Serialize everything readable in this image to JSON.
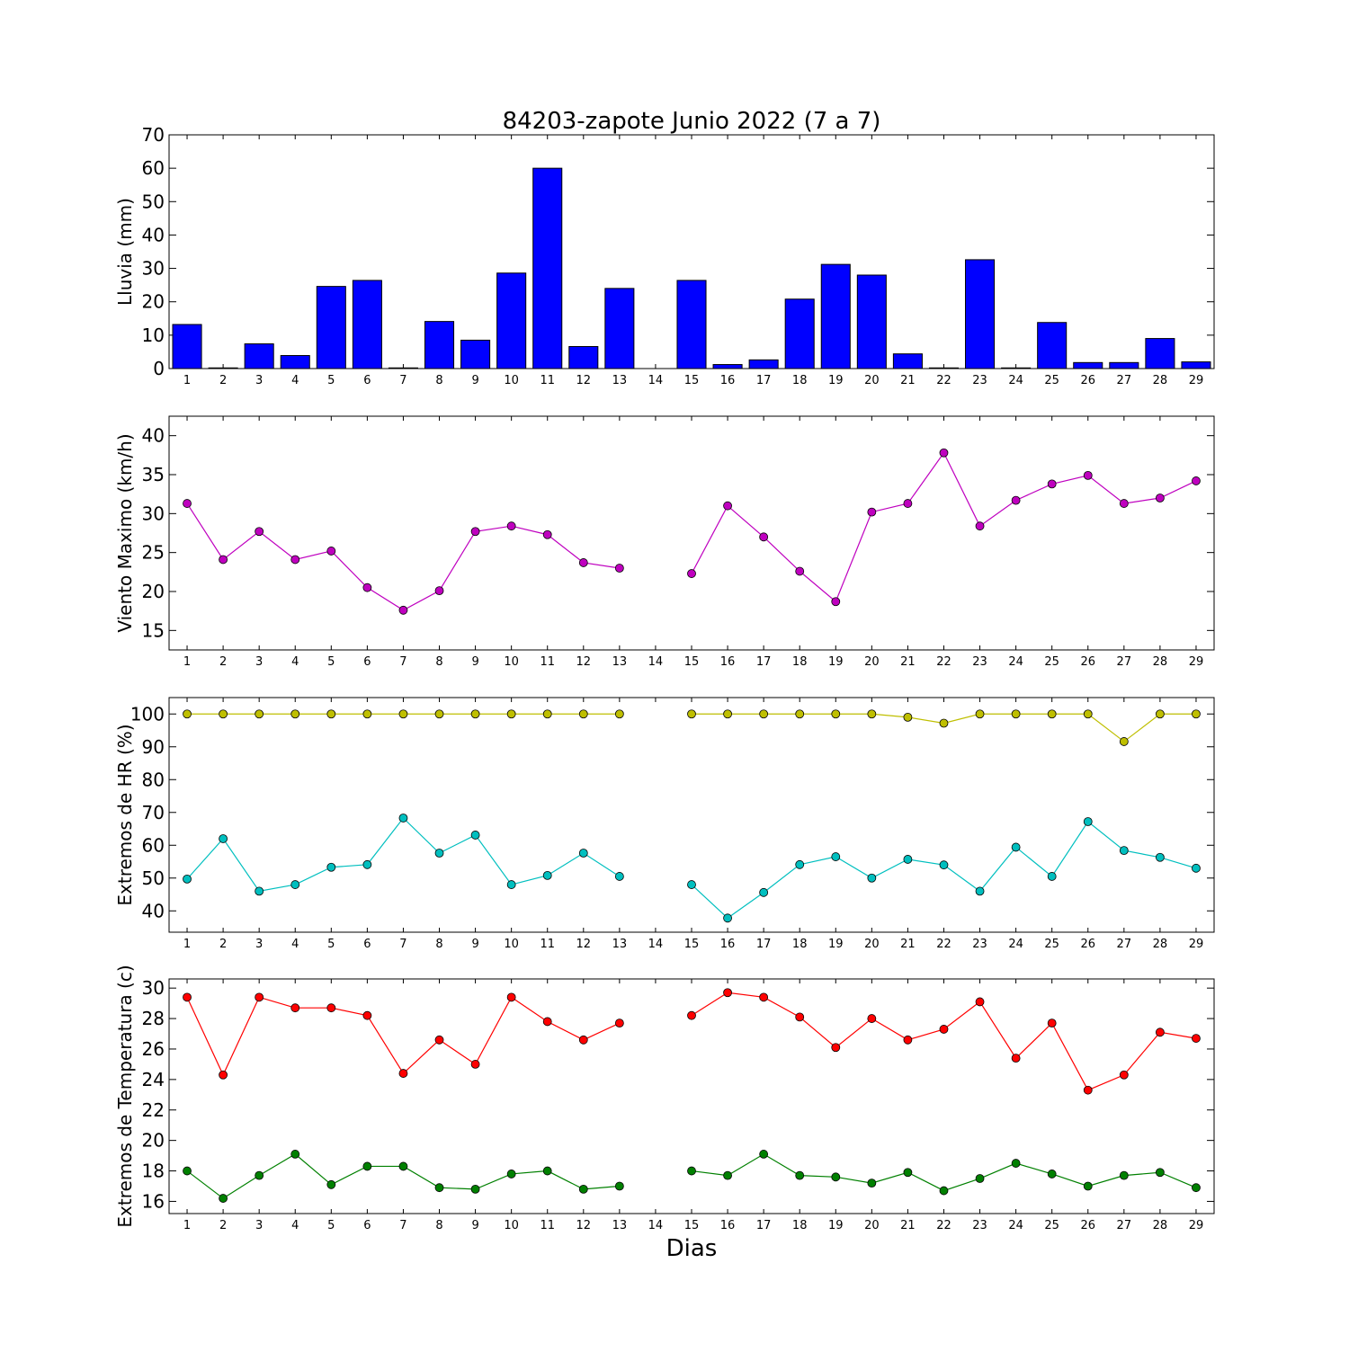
{
  "title": "84203-zapote Junio 2022  (7 a 7)",
  "xlabel": "Dias",
  "days": [
    1,
    2,
    3,
    4,
    5,
    6,
    7,
    8,
    9,
    10,
    11,
    12,
    13,
    14,
    15,
    16,
    17,
    18,
    19,
    20,
    21,
    22,
    23,
    24,
    25,
    26,
    27,
    28,
    29
  ],
  "chart_data": [
    {
      "type": "bar",
      "title": "84203-zapote Junio 2022  (7 a 7)",
      "xlabel": "",
      "ylabel": "Lluvia (mm)",
      "ylim": [
        0,
        70
      ],
      "yticks": [
        0,
        10,
        20,
        30,
        40,
        50,
        60,
        70
      ],
      "color": "#0000ff",
      "x": [
        1,
        2,
        3,
        4,
        5,
        6,
        7,
        8,
        9,
        10,
        11,
        12,
        13,
        14,
        15,
        16,
        17,
        18,
        19,
        20,
        21,
        22,
        23,
        24,
        25,
        26,
        27,
        28,
        29
      ],
      "values": [
        13.2,
        0.2,
        7.4,
        3.9,
        24.6,
        26.4,
        0.2,
        14.1,
        8.5,
        28.6,
        60,
        6.6,
        24,
        0,
        26.4,
        1.2,
        2.6,
        20.8,
        31.2,
        28,
        4.4,
        0.2,
        32.6,
        0.2,
        13.8,
        1.8,
        1.8,
        9,
        2
      ],
      "grid": false
    },
    {
      "type": "line",
      "ylabel": "Viento Maximo (km/h)",
      "ylim": [
        12.5,
        42.5
      ],
      "yticks": [
        15,
        20,
        25,
        30,
        35,
        40
      ],
      "grid": false,
      "x": [
        1,
        2,
        3,
        4,
        5,
        6,
        7,
        8,
        9,
        10,
        11,
        12,
        13,
        14,
        15,
        16,
        17,
        18,
        19,
        20,
        21,
        22,
        23,
        24,
        25,
        26,
        27,
        28,
        29
      ],
      "series": [
        {
          "color": "#bf00bf",
          "values": [
            31.3,
            24.1,
            27.7,
            24.1,
            25.2,
            20.5,
            17.6,
            20.1,
            27.7,
            28.4,
            27.3,
            23.7,
            23.0,
            null,
            22.3,
            31.0,
            27.0,
            22.6,
            18.7,
            30.2,
            31.3,
            37.8,
            28.4,
            31.7,
            33.8,
            34.9,
            31.3,
            32.0,
            34.2
          ]
        }
      ]
    },
    {
      "type": "line",
      "ylabel": "Extremos de HR (%)",
      "ylim": [
        33.5,
        105
      ],
      "yticks": [
        40,
        50,
        60,
        70,
        80,
        90,
        100
      ],
      "grid": false,
      "x": [
        1,
        2,
        3,
        4,
        5,
        6,
        7,
        8,
        9,
        10,
        11,
        12,
        13,
        14,
        15,
        16,
        17,
        18,
        19,
        20,
        21,
        22,
        23,
        24,
        25,
        26,
        27,
        28,
        29
      ],
      "series": [
        {
          "color": "#bfbf00",
          "values": [
            100,
            100,
            100,
            100,
            100,
            100,
            100,
            100,
            100,
            100,
            100,
            100,
            100,
            null,
            100,
            100,
            100,
            100,
            100,
            100,
            99,
            97.2,
            100,
            100,
            100,
            100,
            91.6,
            100,
            100
          ]
        },
        {
          "color": "#00bfbf",
          "values": [
            49.7,
            62.0,
            46.0,
            48.0,
            53.3,
            54.1,
            68.3,
            57.6,
            63.1,
            48.0,
            50.8,
            57.6,
            50.5,
            null,
            48.0,
            37.8,
            45.6,
            54.1,
            56.5,
            50.0,
            55.7,
            54.0,
            46.0,
            59.4,
            50.5,
            67.2,
            58.4,
            56.3,
            53.0
          ]
        }
      ]
    },
    {
      "type": "line",
      "ylabel": "Extremos de Temperatura (c)",
      "ylim": [
        15.2,
        30.6
      ],
      "yticks": [
        16,
        18,
        20,
        22,
        24,
        26,
        28,
        30
      ],
      "grid": false,
      "x": [
        1,
        2,
        3,
        4,
        5,
        6,
        7,
        8,
        9,
        10,
        11,
        12,
        13,
        14,
        15,
        16,
        17,
        18,
        19,
        20,
        21,
        22,
        23,
        24,
        25,
        26,
        27,
        28,
        29
      ],
      "series": [
        {
          "color": "#ff0000",
          "values": [
            29.4,
            24.3,
            29.4,
            28.7,
            28.7,
            28.2,
            24.4,
            26.6,
            25.0,
            29.4,
            27.8,
            26.6,
            27.7,
            null,
            28.2,
            29.7,
            29.4,
            28.1,
            26.1,
            28.0,
            26.6,
            27.3,
            29.1,
            25.4,
            27.7,
            23.3,
            24.3,
            27.1,
            26.7
          ]
        },
        {
          "color": "#008000",
          "values": [
            18.0,
            16.2,
            17.7,
            19.1,
            17.1,
            18.3,
            18.3,
            16.9,
            16.8,
            17.8,
            18.0,
            16.8,
            17.0,
            null,
            18.0,
            17.7,
            19.1,
            17.7,
            17.6,
            17.2,
            17.9,
            16.7,
            17.5,
            18.5,
            17.8,
            17.0,
            17.7,
            17.9,
            16.9
          ]
        }
      ]
    }
  ]
}
